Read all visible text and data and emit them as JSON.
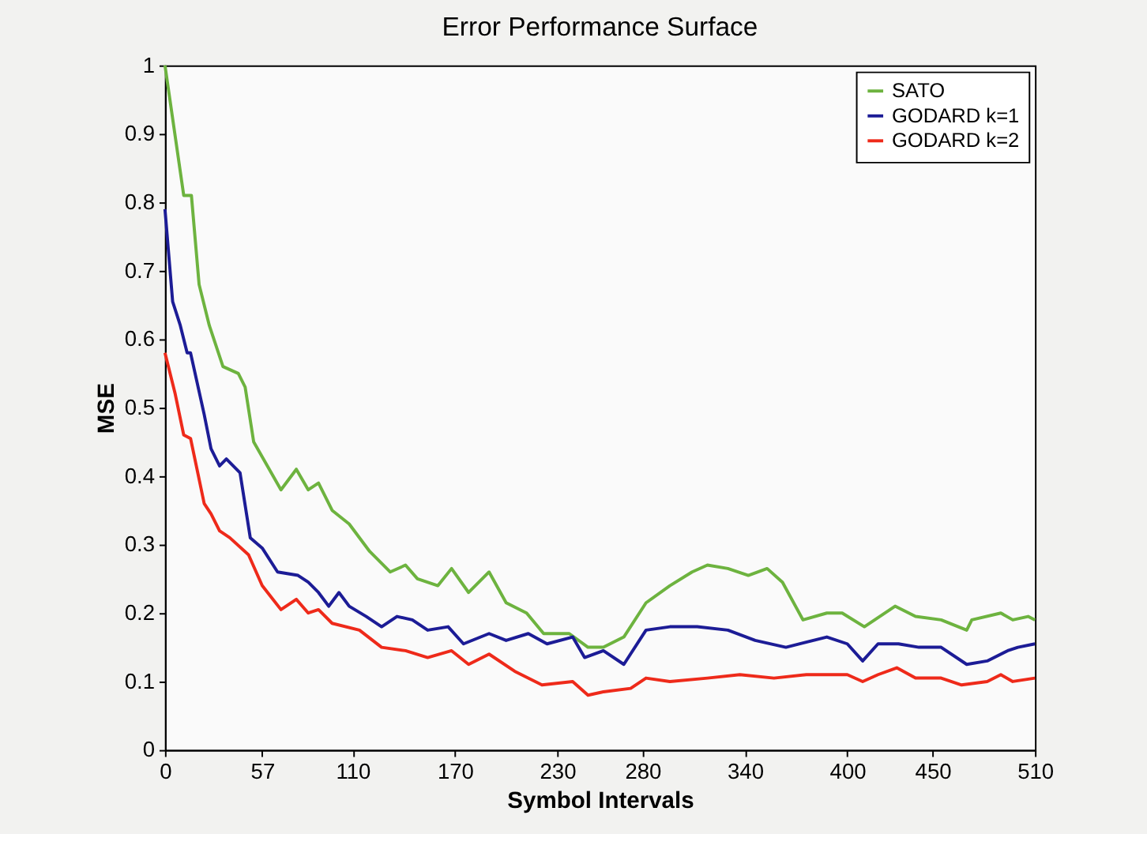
{
  "chart_data": {
    "type": "line",
    "title": "Error Performance Surface",
    "xlabel": "Symbol Intervals",
    "ylabel": "MSE",
    "xlim": [
      0,
      510
    ],
    "ylim": [
      0,
      1
    ],
    "xticks": [
      0,
      57,
      110,
      170,
      230,
      280,
      340,
      400,
      450,
      510
    ],
    "yticks": [
      0,
      0.1,
      0.2,
      0.3,
      0.4,
      0.5,
      0.6,
      0.7,
      0.8,
      0.9,
      1
    ],
    "grid": false,
    "legend": "top right",
    "marker": "none",
    "line_style": "solid",
    "series": [
      {
        "name": "SATO",
        "color": "#6db33f",
        "x": [
          0,
          11,
          15.5,
          20,
          26,
          34,
          43,
          47,
          52,
          68,
          77,
          84,
          90,
          98,
          108,
          120,
          132,
          141,
          148,
          160,
          168,
          178,
          190,
          200,
          212,
          222,
          237,
          248,
          257,
          269,
          282,
          296,
          309,
          318,
          330,
          342,
          353,
          362,
          374,
          388,
          397,
          410,
          428,
          440,
          455,
          470,
          473,
          490,
          497,
          506,
          510
        ],
        "values": [
          1.0,
          0.81,
          0.81,
          0.68,
          0.62,
          0.56,
          0.55,
          0.53,
          0.45,
          0.38,
          0.41,
          0.38,
          0.39,
          0.35,
          0.33,
          0.29,
          0.26,
          0.27,
          0.25,
          0.24,
          0.265,
          0.23,
          0.26,
          0.215,
          0.2,
          0.17,
          0.17,
          0.15,
          0.15,
          0.165,
          0.215,
          0.24,
          0.26,
          0.27,
          0.265,
          0.255,
          0.265,
          0.245,
          0.19,
          0.2,
          0.2,
          0.18,
          0.21,
          0.195,
          0.19,
          0.175,
          0.19,
          0.2,
          0.19,
          0.195,
          0.19
        ]
      },
      {
        "name": "GODARD k=1",
        "color": "#1c1c96",
        "x": [
          0,
          4.5,
          9,
          13,
          15,
          23,
          27,
          32,
          36,
          44,
          50,
          57,
          66,
          78,
          84,
          90,
          96,
          102,
          108,
          118,
          127,
          136,
          145,
          154,
          166,
          175,
          190,
          200,
          213,
          224,
          239,
          246,
          257,
          269,
          282,
          296,
          312,
          330,
          346,
          364,
          388,
          400,
          409,
          418,
          430,
          442,
          455,
          470,
          482,
          494,
          500,
          510
        ],
        "values": [
          0.79,
          0.655,
          0.62,
          0.58,
          0.58,
          0.49,
          0.44,
          0.415,
          0.425,
          0.405,
          0.31,
          0.295,
          0.26,
          0.255,
          0.245,
          0.23,
          0.21,
          0.23,
          0.21,
          0.195,
          0.18,
          0.195,
          0.19,
          0.175,
          0.18,
          0.155,
          0.17,
          0.16,
          0.17,
          0.155,
          0.165,
          0.135,
          0.145,
          0.125,
          0.175,
          0.18,
          0.18,
          0.175,
          0.16,
          0.15,
          0.165,
          0.155,
          0.13,
          0.155,
          0.155,
          0.15,
          0.15,
          0.125,
          0.13,
          0.145,
          0.15,
          0.155
        ]
      },
      {
        "name": "GODARD k=2",
        "color": "#ee2a1a",
        "x": [
          0,
          6,
          11,
          15,
          23,
          27,
          32,
          38,
          49,
          57,
          68,
          77,
          84,
          90,
          98,
          114,
          127,
          141,
          154,
          168,
          178,
          190,
          205,
          221,
          239,
          248,
          257,
          273,
          282,
          296,
          318,
          337,
          357,
          376,
          400,
          409,
          418,
          429,
          440,
          455,
          467,
          482,
          490,
          497,
          510
        ],
        "values": [
          0.58,
          0.52,
          0.46,
          0.455,
          0.36,
          0.345,
          0.32,
          0.31,
          0.285,
          0.24,
          0.205,
          0.22,
          0.2,
          0.205,
          0.185,
          0.175,
          0.15,
          0.145,
          0.135,
          0.145,
          0.125,
          0.14,
          0.115,
          0.095,
          0.1,
          0.08,
          0.085,
          0.09,
          0.105,
          0.1,
          0.105,
          0.11,
          0.105,
          0.11,
          0.11,
          0.1,
          0.11,
          0.12,
          0.105,
          0.105,
          0.095,
          0.1,
          0.11,
          0.1,
          0.105
        ]
      }
    ]
  }
}
